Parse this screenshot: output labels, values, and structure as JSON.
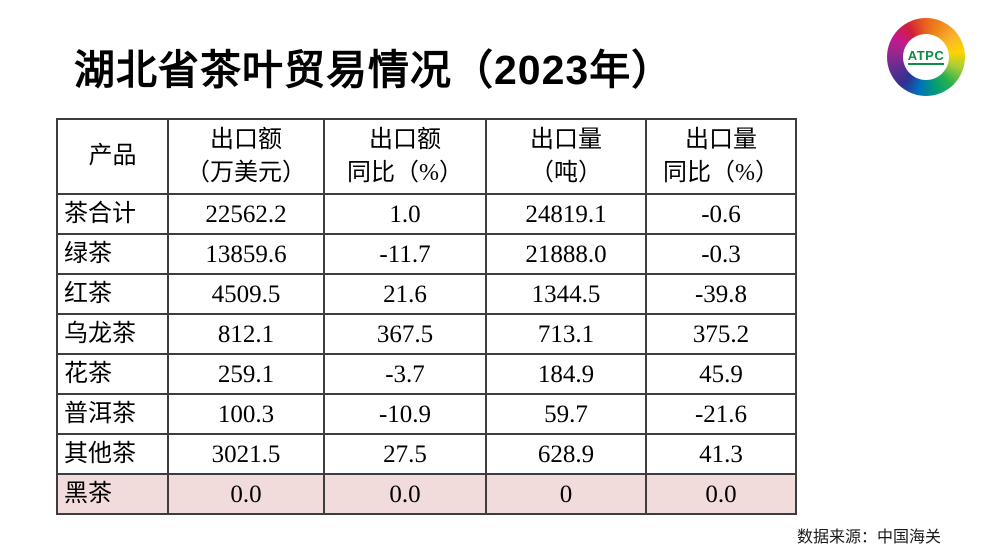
{
  "title": "湖北省茶叶贸易情况（2023年）",
  "logo": {
    "text": "ATPC"
  },
  "source_note": "数据来源：中国海关",
  "colors": {
    "highlight_row": "#f2dcdb",
    "table_border": "#3d3d3d",
    "logo_text": "#0e8c44"
  },
  "table": {
    "columns": [
      "产品",
      "出口额\n（万美元）",
      "出口额\n同比（%）",
      "出口量\n（吨）",
      "出口量\n同比（%）"
    ],
    "rows": [
      {
        "product": "茶合计",
        "values": [
          "22562.2",
          "1.0",
          "24819.1",
          "-0.6"
        ]
      },
      {
        "product": "绿茶",
        "values": [
          "13859.6",
          "-11.7",
          "21888.0",
          "-0.3"
        ]
      },
      {
        "product": "红茶",
        "values": [
          "4509.5",
          "21.6",
          "1344.5",
          "-39.8"
        ]
      },
      {
        "product": "乌龙茶",
        "values": [
          "812.1",
          "367.5",
          "713.1",
          "375.2"
        ]
      },
      {
        "product": "花茶",
        "values": [
          "259.1",
          "-3.7",
          "184.9",
          "45.9"
        ]
      },
      {
        "product": "普洱茶",
        "values": [
          "100.3",
          "-10.9",
          "59.7",
          "-21.6"
        ]
      },
      {
        "product": "其他茶",
        "values": [
          "3021.5",
          "27.5",
          "628.9",
          "41.3"
        ]
      },
      {
        "product": "黑茶",
        "values": [
          "0.0",
          "0.0",
          "0",
          "0.0"
        ],
        "highlight": true
      }
    ]
  }
}
